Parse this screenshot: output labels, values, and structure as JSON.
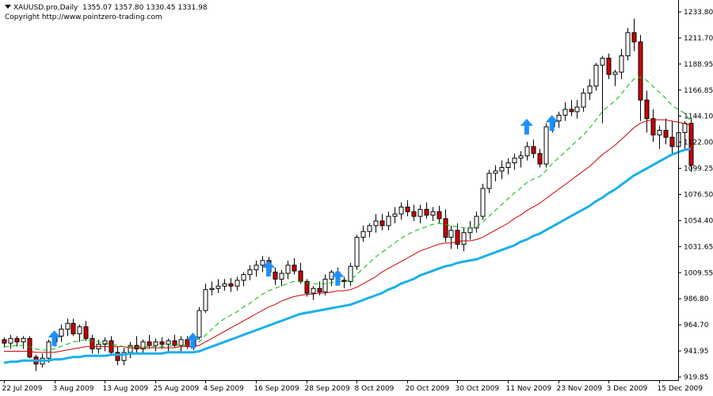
{
  "header": {
    "symbol_timeframe": "XAUUSD.pro,Daily",
    "ohlc": "1355.07 1357.80 1330.45 1331.98",
    "copyright": "Copyright http://www.pointzero-trading.com"
  },
  "colors": {
    "bull_body": "#ffffff",
    "bear_body": "#cc0000",
    "wick": "#000000",
    "ema_fast": "#00bb00",
    "ema_mid": "#cc0000",
    "ema_slow": "#1ab0ea",
    "arrow": "#1e90ff"
  },
  "chart_data": {
    "type": "candlestick",
    "y_ticks": [
      "1233.80",
      "1211.70",
      "1188.95",
      "1166.85",
      "1144.10",
      "1122.00",
      "1099.25",
      "1076.50",
      "1054.40",
      "1031.65",
      "1009.55",
      "986.80",
      "964.70",
      "941.95",
      "919.85"
    ],
    "ylim": [
      919.85,
      1233.8
    ],
    "x_labels": [
      {
        "label": "22 Jul 2009",
        "index": 0
      },
      {
        "label": "3 Aug 2009",
        "index": 8
      },
      {
        "label": "13 Aug 2009",
        "index": 16
      },
      {
        "label": "25 Aug 2009",
        "index": 24
      },
      {
        "label": "4 Sep 2009",
        "index": 32
      },
      {
        "label": "16 Sep 2009",
        "index": 40
      },
      {
        "label": "28 Sep 2009",
        "index": 48
      },
      {
        "label": "8 Oct 2009",
        "index": 56
      },
      {
        "label": "20 Oct 2009",
        "index": 64
      },
      {
        "label": "30 Oct 2009",
        "index": 72
      },
      {
        "label": "11 Nov 2009",
        "index": 80
      },
      {
        "label": "23 Nov 2009",
        "index": 88
      },
      {
        "label": "3 Dec 2009",
        "index": 96
      },
      {
        "label": "15 Dec 2009",
        "index": 104
      }
    ],
    "candles": [
      [
        952,
        954,
        945,
        949
      ],
      [
        949,
        956,
        944,
        953
      ],
      [
        953,
        955,
        946,
        950
      ],
      [
        950,
        955,
        944,
        953
      ],
      [
        953,
        955,
        936,
        937
      ],
      [
        937,
        939,
        925,
        931
      ],
      [
        931,
        940,
        928,
        936
      ],
      [
        936,
        952,
        932,
        950
      ],
      [
        950,
        956,
        946,
        955
      ],
      [
        955,
        965,
        950,
        961
      ],
      [
        961,
        970,
        955,
        966
      ],
      [
        966,
        970,
        955,
        957
      ],
      [
        957,
        965,
        950,
        963
      ],
      [
        963,
        968,
        951,
        953
      ],
      [
        953,
        956,
        940,
        944
      ],
      [
        944,
        952,
        940,
        948
      ],
      [
        948,
        954,
        942,
        951
      ],
      [
        951,
        955,
        938,
        941
      ],
      [
        941,
        946,
        930,
        934
      ],
      [
        934,
        945,
        930,
        941
      ],
      [
        941,
        950,
        936,
        947
      ],
      [
        947,
        955,
        940,
        944
      ],
      [
        944,
        952,
        940,
        950
      ],
      [
        950,
        956,
        944,
        947
      ],
      [
        947,
        953,
        942,
        950
      ],
      [
        950,
        954,
        944,
        948
      ],
      [
        948,
        953,
        942,
        951
      ],
      [
        951,
        956,
        945,
        947
      ],
      [
        947,
        955,
        942,
        952
      ],
      [
        952,
        955,
        944,
        946
      ],
      [
        946,
        956,
        943,
        954
      ],
      [
        954,
        980,
        952,
        977
      ],
      [
        977,
        1000,
        975,
        995
      ],
      [
        995,
        1002,
        990,
        996
      ],
      [
        996,
        1004,
        992,
        998
      ],
      [
        998,
        1004,
        994,
        1000
      ],
      [
        1000,
        1005,
        993,
        998
      ],
      [
        998,
        1006,
        994,
        1003
      ],
      [
        1003,
        1010,
        998,
        1008
      ],
      [
        1008,
        1016,
        1003,
        1012
      ],
      [
        1012,
        1020,
        1006,
        1016
      ],
      [
        1016,
        1024,
        1010,
        1020
      ],
      [
        1020,
        1023,
        1007,
        1010
      ],
      [
        1010,
        1014,
        999,
        1004
      ],
      [
        1004,
        1012,
        998,
        1009
      ],
      [
        1009,
        1020,
        1004,
        1016
      ],
      [
        1016,
        1022,
        1008,
        1011
      ],
      [
        1011,
        1018,
        1000,
        1002
      ],
      [
        1002,
        1004,
        989,
        992
      ],
      [
        992,
        998,
        986,
        996
      ],
      [
        996,
        1002,
        990,
        993
      ],
      [
        993,
        1008,
        990,
        1004
      ],
      [
        1004,
        1012,
        998,
        1010
      ],
      [
        1010,
        1014,
        1000,
        1003
      ],
      [
        1003,
        1006,
        996,
        1002
      ],
      [
        1002,
        1018,
        998,
        1015
      ],
      [
        1015,
        1042,
        1012,
        1040
      ],
      [
        1040,
        1050,
        1036,
        1045
      ],
      [
        1045,
        1052,
        1040,
        1050
      ],
      [
        1050,
        1060,
        1044,
        1054
      ],
      [
        1054,
        1060,
        1046,
        1050
      ],
      [
        1050,
        1062,
        1046,
        1058
      ],
      [
        1058,
        1066,
        1052,
        1060
      ],
      [
        1060,
        1070,
        1055,
        1066
      ],
      [
        1066,
        1072,
        1058,
        1062
      ],
      [
        1062,
        1068,
        1054,
        1058
      ],
      [
        1058,
        1068,
        1052,
        1064
      ],
      [
        1064,
        1070,
        1056,
        1059
      ],
      [
        1059,
        1066,
        1054,
        1062
      ],
      [
        1062,
        1067,
        1052,
        1056
      ],
      [
        1056,
        1064,
        1036,
        1040
      ],
      [
        1040,
        1050,
        1030,
        1046
      ],
      [
        1046,
        1052,
        1030,
        1034
      ],
      [
        1034,
        1048,
        1028,
        1044
      ],
      [
        1044,
        1054,
        1038,
        1048
      ],
      [
        1048,
        1062,
        1044,
        1058
      ],
      [
        1058,
        1086,
        1055,
        1082
      ],
      [
        1082,
        1098,
        1078,
        1095
      ],
      [
        1095,
        1102,
        1088,
        1097
      ],
      [
        1097,
        1106,
        1090,
        1100
      ],
      [
        1100,
        1108,
        1094,
        1104
      ],
      [
        1104,
        1112,
        1098,
        1108
      ],
      [
        1108,
        1114,
        1100,
        1110
      ],
      [
        1110,
        1122,
        1106,
        1118
      ],
      [
        1118,
        1124,
        1108,
        1112
      ],
      [
        1112,
        1116,
        1100,
        1103
      ],
      [
        1103,
        1138,
        1100,
        1135
      ],
      [
        1135,
        1144,
        1130,
        1140
      ],
      [
        1140,
        1148,
        1134,
        1145
      ],
      [
        1145,
        1156,
        1140,
        1150
      ],
      [
        1150,
        1158,
        1144,
        1148
      ],
      [
        1148,
        1158,
        1142,
        1152
      ],
      [
        1152,
        1168,
        1148,
        1164
      ],
      [
        1164,
        1176,
        1158,
        1170
      ],
      [
        1170,
        1190,
        1166,
        1188
      ],
      [
        1188,
        1196,
        1138,
        1194
      ],
      [
        1194,
        1198,
        1176,
        1180
      ],
      [
        1180,
        1184,
        1170,
        1182
      ],
      [
        1182,
        1202,
        1176,
        1196
      ],
      [
        1196,
        1220,
        1192,
        1216
      ],
      [
        1216,
        1228,
        1200,
        1208
      ],
      [
        1208,
        1214,
        1140,
        1158
      ],
      [
        1158,
        1166,
        1130,
        1142
      ],
      [
        1142,
        1150,
        1122,
        1128
      ],
      [
        1128,
        1136,
        1116,
        1132
      ],
      [
        1132,
        1142,
        1120,
        1126
      ],
      [
        1126,
        1140,
        1112,
        1118
      ],
      [
        1118,
        1134,
        1110,
        1130
      ],
      [
        1130,
        1140,
        1116,
        1138
      ],
      [
        1138,
        1142,
        1096,
        1102
      ]
    ],
    "ema_fast": [
      946,
      946,
      947,
      947,
      946,
      944,
      943,
      943,
      944,
      946,
      948,
      950,
      951,
      952,
      951,
      950,
      949,
      948,
      947,
      946,
      946,
      946,
      946,
      946,
      946,
      946,
      946,
      947,
      947,
      947,
      947,
      950,
      956,
      961,
      966,
      970,
      973,
      976,
      980,
      983,
      987,
      991,
      994,
      996,
      998,
      1000,
      1002,
      1002,
      1001,
      1000,
      1000,
      1000,
      1001,
      1002,
      1002,
      1003,
      1008,
      1013,
      1018,
      1023,
      1027,
      1031,
      1035,
      1039,
      1042,
      1045,
      1047,
      1049,
      1051,
      1052,
      1051,
      1050,
      1049,
      1048,
      1048,
      1049,
      1053,
      1058,
      1063,
      1068,
      1073,
      1078,
      1082,
      1087,
      1090,
      1092,
      1097,
      1103,
      1108,
      1113,
      1118,
      1123,
      1128,
      1134,
      1141,
      1148,
      1153,
      1157,
      1163,
      1170,
      1176,
      1178,
      1175,
      1170,
      1165,
      1160,
      1154,
      1150,
      1147,
      1140
    ],
    "ema_mid": [
      942,
      942,
      942,
      942,
      942,
      941,
      941,
      941,
      941,
      942,
      943,
      944,
      945,
      946,
      946,
      946,
      946,
      946,
      946,
      946,
      945,
      945,
      945,
      945,
      945,
      945,
      945,
      945,
      946,
      946,
      946,
      947,
      950,
      953,
      956,
      959,
      962,
      965,
      968,
      971,
      974,
      977,
      980,
      982,
      985,
      987,
      989,
      990,
      991,
      991,
      992,
      992,
      993,
      994,
      994,
      995,
      997,
      1000,
      1003,
      1006,
      1010,
      1013,
      1016,
      1019,
      1022,
      1025,
      1028,
      1030,
      1032,
      1034,
      1035,
      1035,
      1036,
      1037,
      1037,
      1038,
      1040,
      1043,
      1046,
      1049,
      1052,
      1056,
      1059,
      1063,
      1066,
      1069,
      1073,
      1077,
      1081,
      1085,
      1089,
      1093,
      1097,
      1101,
      1106,
      1111,
      1115,
      1119,
      1124,
      1129,
      1134,
      1138,
      1140,
      1141,
      1141,
      1141,
      1140,
      1139,
      1138,
      1136
    ],
    "ema_slow": [
      932,
      933,
      933,
      934,
      934,
      934,
      934,
      934,
      935,
      935,
      936,
      937,
      937,
      938,
      938,
      938,
      938,
      939,
      939,
      939,
      940,
      940,
      940,
      940,
      940,
      940,
      941,
      941,
      941,
      941,
      941,
      942,
      944,
      946,
      948,
      950,
      952,
      954,
      956,
      958,
      960,
      962,
      964,
      966,
      968,
      970,
      972,
      974,
      975,
      976,
      977,
      978,
      979,
      980,
      981,
      982,
      984,
      986,
      988,
      990,
      992,
      995,
      997,
      1000,
      1002,
      1004,
      1007,
      1009,
      1011,
      1013,
      1015,
      1016,
      1018,
      1019,
      1020,
      1021,
      1023,
      1025,
      1027,
      1029,
      1031,
      1033,
      1036,
      1038,
      1041,
      1043,
      1046,
      1049,
      1052,
      1055,
      1058,
      1061,
      1064,
      1067,
      1071,
      1074,
      1078,
      1081,
      1085,
      1089,
      1093,
      1096,
      1099,
      1102,
      1105,
      1108,
      1111,
      1113,
      1115,
      1116
    ],
    "arrows": [
      {
        "index": 8,
        "value": 945
      },
      {
        "index": 30,
        "value": 943
      },
      {
        "index": 42,
        "value": 1005
      },
      {
        "index": 53,
        "value": 997
      },
      {
        "index": 83,
        "value": 1127
      },
      {
        "index": 87,
        "value": 1130
      }
    ]
  }
}
